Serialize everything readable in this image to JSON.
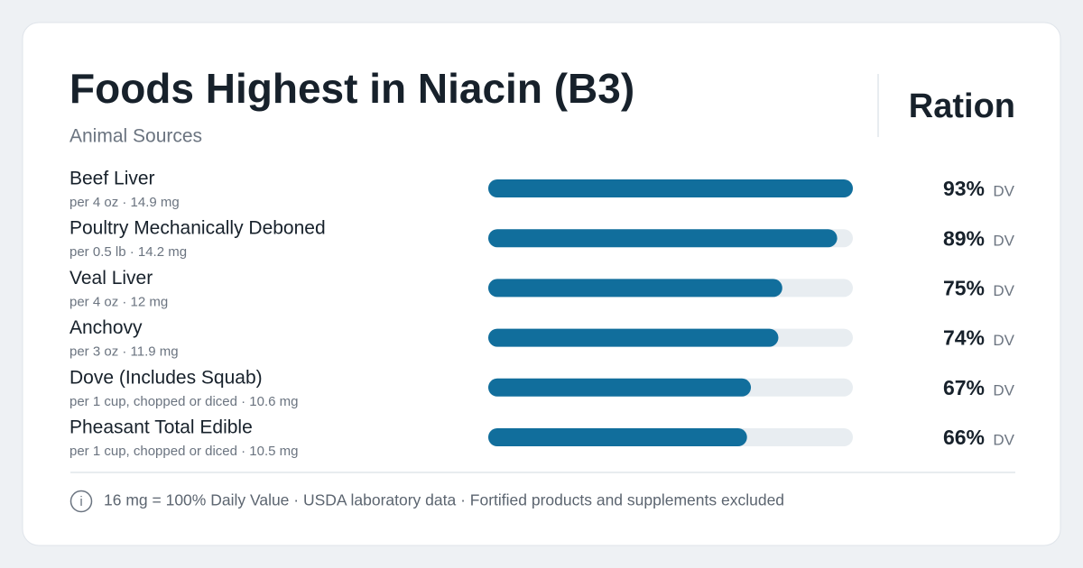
{
  "brand": "Ration",
  "chart_data": {
    "type": "bar",
    "orientation": "horizontal",
    "title": "Foods Highest in Niacin (B3)",
    "subtitle": "Animal Sources",
    "categories": [
      "Beef Liver",
      "Poultry Mechanically Deboned",
      "Veal Liver",
      "Anchovy",
      "Dove (Includes Squab)",
      "Pheasant Total Edible"
    ],
    "details": [
      "per 4 oz · 14.9 mg",
      "per 0.5 lb · 14.2 mg",
      "per 4 oz · 12 mg",
      "per 3 oz · 11.9 mg",
      "per 1 cup, chopped or diced · 10.6 mg",
      "per 1 cup, chopped or diced · 10.5 mg"
    ],
    "values": [
      93,
      89,
      75,
      74,
      67,
      66
    ],
    "value_labels": [
      "93%",
      "89%",
      "75%",
      "74%",
      "67%",
      "66%"
    ],
    "value_unit": "DV",
    "xlim": [
      0,
      93
    ],
    "color": "#116e9c",
    "track_color": "#e8edf1",
    "footnote": "16 mg = 100% Daily Value · USDA laboratory data · Fortified products and supplements excluded"
  }
}
